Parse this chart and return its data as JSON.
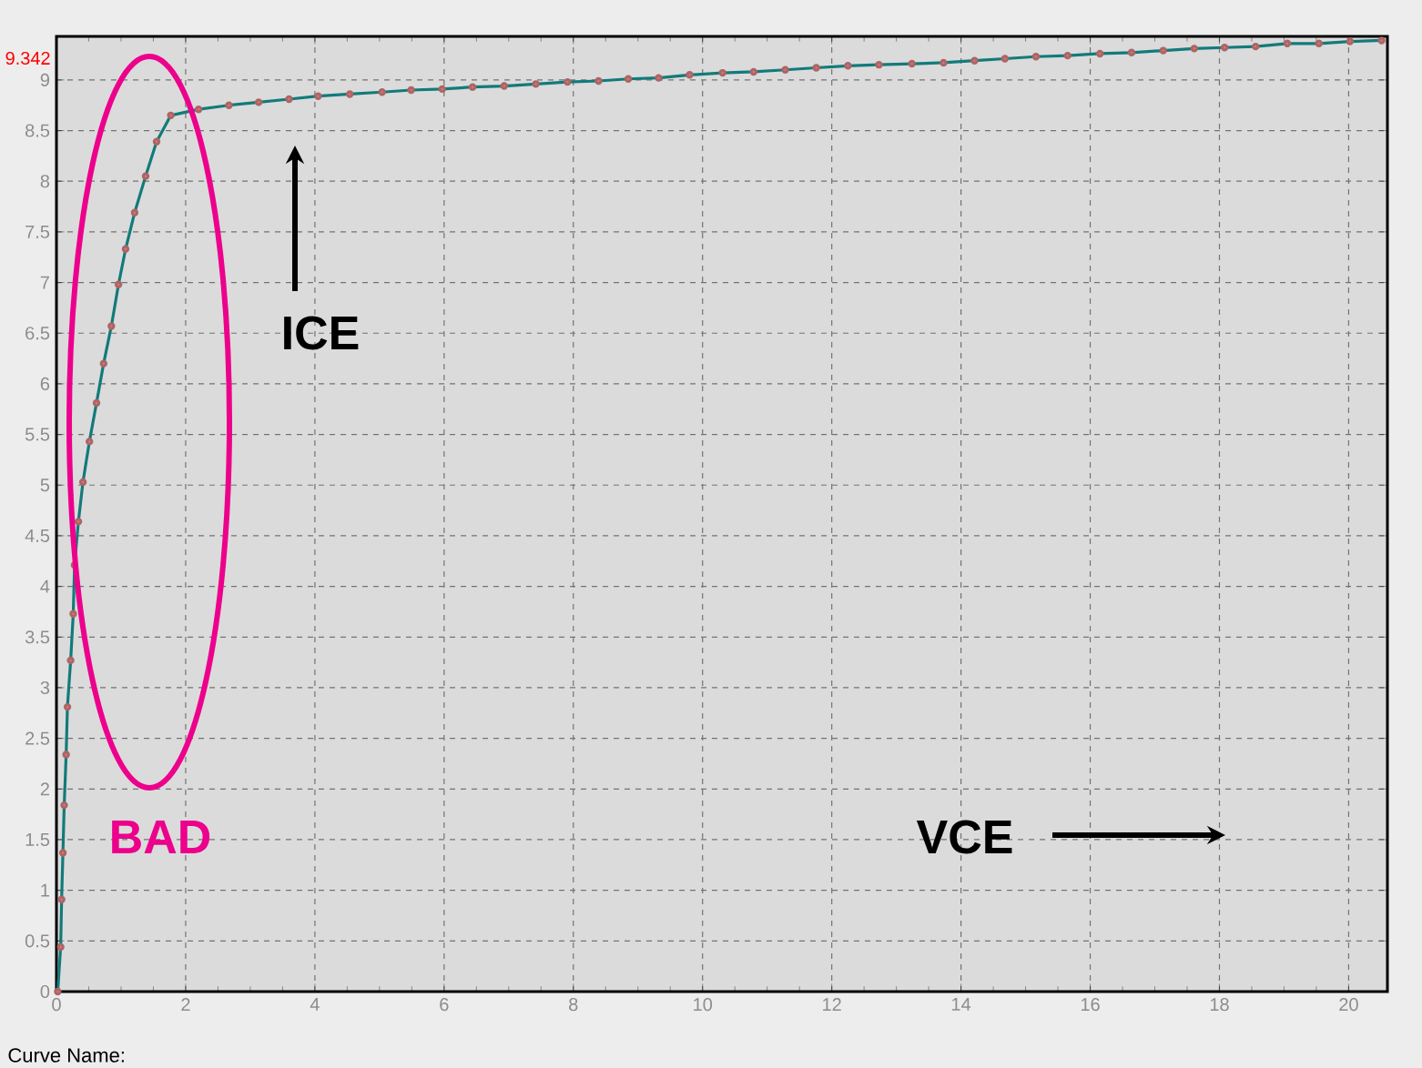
{
  "chart_data": {
    "type": "line",
    "x": [
      0.02,
      0.065,
      0.08,
      0.1,
      0.12,
      0.15,
      0.17,
      0.22,
      0.26,
      0.28,
      0.34,
      0.41,
      0.51,
      0.62,
      0.73,
      0.85,
      0.96,
      1.07,
      1.21,
      1.38,
      1.55,
      1.77,
      2.2,
      2.67,
      3.13,
      3.6,
      4.05,
      4.54,
      5.04,
      5.49,
      5.97,
      6.44,
      6.93,
      7.42,
      7.91,
      8.39,
      8.85,
      9.32,
      9.8,
      10.31,
      10.79,
      11.28,
      11.76,
      12.25,
      12.73,
      13.24,
      13.73,
      14.21,
      14.68,
      15.16,
      15.65,
      16.15,
      16.64,
      17.13,
      17.61,
      18.08,
      18.56,
      19.05,
      19.54,
      20.02,
      20.51
    ],
    "series": [
      {
        "color": "#137a7a",
        "values": [
          0,
          0.44,
          0.91,
          1.37,
          1.84,
          2.34,
          2.81,
          3.27,
          3.73,
          4.21,
          4.64,
          5.03,
          5.43,
          5.81,
          6.2,
          6.57,
          6.98,
          7.33,
          7.69,
          8.05,
          8.39,
          8.65,
          8.71,
          8.75,
          8.78,
          8.81,
          8.84,
          8.86,
          8.88,
          8.9,
          8.91,
          8.93,
          8.94,
          8.96,
          8.98,
          8.99,
          9.01,
          9.02,
          9.05,
          9.07,
          9.08,
          9.1,
          9.12,
          9.14,
          9.15,
          9.16,
          9.17,
          9.19,
          9.21,
          9.23,
          9.24,
          9.26,
          9.27,
          9.29,
          9.31,
          9.32,
          9.33,
          9.36,
          9.36,
          9.38,
          9.39
        ]
      }
    ],
    "xlim": [
      0,
      20.6
    ],
    "ylim": [
      0,
      9.43
    ],
    "xticks": [
      0,
      2,
      4,
      6,
      8,
      10,
      12,
      14,
      16,
      18,
      20
    ],
    "yticks": [
      0,
      0.5,
      1,
      1.5,
      2,
      2.5,
      3,
      3.5,
      4,
      4.5,
      5,
      5.5,
      6,
      6.5,
      7,
      7.5,
      8,
      8.5,
      9
    ],
    "grid": true,
    "marker": "circle",
    "line_style": "solid",
    "annotations": [
      "9.342",
      "ICE",
      "BAD",
      "VCE",
      "Curve Name:"
    ]
  }
}
